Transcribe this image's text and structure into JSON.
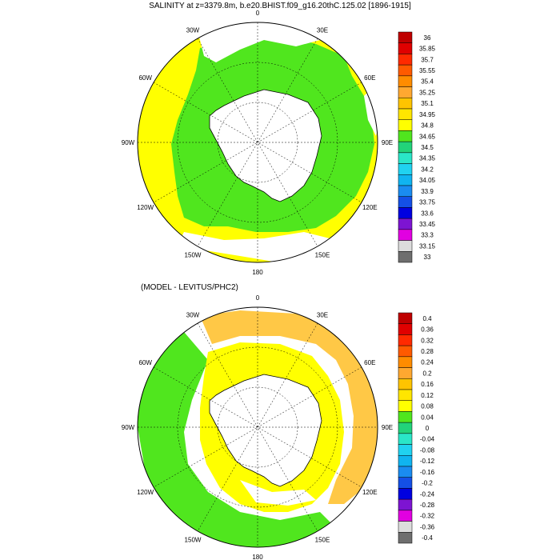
{
  "panels": [
    {
      "title": "SALINITY at z=3379.8m, b.e20.BHIST.f09_g16.20thC.125.02 [1896-1915]",
      "lon_labels": [
        "0",
        "30E",
        "60E",
        "90E",
        "120E",
        "150E",
        "180",
        "150W",
        "120W",
        "90W",
        "60W",
        "30W"
      ],
      "colorbar": {
        "labels": [
          "36",
          "35.85",
          "35.7",
          "35.55",
          "35.4",
          "35.25",
          "35.1",
          "34.95",
          "34.8",
          "34.65",
          "34.5",
          "34.35",
          "34.2",
          "34.05",
          "33.9",
          "33.75",
          "33.6",
          "33.45",
          "33.3",
          "33.15",
          "33"
        ],
        "colors": [
          "#bf0000",
          "#e00000",
          "#ff2a00",
          "#ff5a00",
          "#ff8c00",
          "#ffa830",
          "#ffc400",
          "#ffe600",
          "#ffff00",
          "#50e61e",
          "#22d37a",
          "#2ae6c8",
          "#20d2f0",
          "#10b4f0",
          "#1a8cf0",
          "#1450e6",
          "#0000e0",
          "#7d14d2",
          "#e100e1",
          "#dcdcdc",
          "#6e6e6e"
        ]
      }
    },
    {
      "title": "(MODEL - LEVITUS/PHC2)",
      "lon_labels": [
        "0",
        "30E",
        "60E",
        "90E",
        "120E",
        "150E",
        "180",
        "150W",
        "120W",
        "90W",
        "60W",
        "30W"
      ],
      "colorbar": {
        "labels": [
          "0.4",
          "0.36",
          "0.32",
          "0.28",
          "0.24",
          "0.2",
          "0.16",
          "0.12",
          "0.08",
          "0.04",
          "0",
          "-0.04",
          "-0.08",
          "-0.12",
          "-0.16",
          "-0.2",
          "-0.24",
          "-0.28",
          "-0.32",
          "-0.36",
          "-0.4"
        ],
        "colors": [
          "#bf0000",
          "#e00000",
          "#ff2a00",
          "#ff5a00",
          "#ff8c00",
          "#ffa830",
          "#ffc400",
          "#ffe600",
          "#ffff00",
          "#50e61e",
          "#22d37a",
          "#2ae6c8",
          "#20d2f0",
          "#10b4f0",
          "#1a8cf0",
          "#1450e6",
          "#0000e0",
          "#7d14d2",
          "#e100e1",
          "#dcdcdc",
          "#6e6e6e"
        ]
      }
    }
  ],
  "colors": {
    "yellow": "#ffff00",
    "green": "#50e61e",
    "orange": "#ffc846",
    "land": "#ffffff",
    "coast": "#000000"
  }
}
